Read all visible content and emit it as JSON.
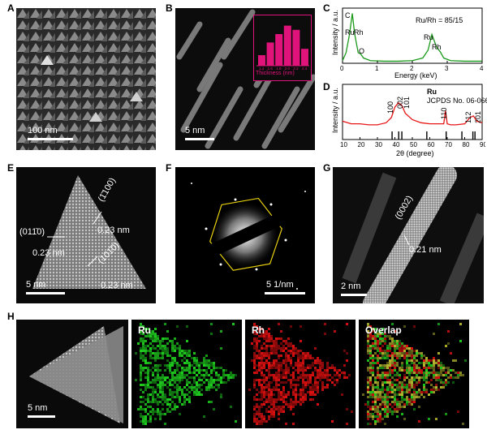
{
  "panels": {
    "A": {
      "letter": "A",
      "scale": "100 nm"
    },
    "B": {
      "letter": "B",
      "scale": "5 nm",
      "inset": {
        "xlabel": "Thickness (nm)",
        "chart_data": {
          "type": "bar",
          "categories": [
            "1.4",
            "1.6",
            "1.8",
            "2.0",
            "2.2",
            "2.4"
          ],
          "values": [
            0.25,
            0.55,
            0.75,
            0.95,
            0.85,
            0.4
          ],
          "xlabel": "Thickness (nm)",
          "ylabel": ""
        }
      }
    },
    "C": {
      "letter": "C",
      "ylabel": "Intensity / a.u.",
      "xlabel": "Energy (keV)",
      "ratio": "Ru/Rh = 85/15",
      "peaks": [
        "C",
        "Ru",
        "Rh",
        "O",
        "Ru",
        "Rh"
      ],
      "xticks": [
        "0",
        "1",
        "2",
        "3",
        "4"
      ],
      "chart_data": {
        "type": "line",
        "x": [
          0,
          0.1,
          0.2,
          0.28,
          0.35,
          0.45,
          0.52,
          0.6,
          0.8,
          1.2,
          1.6,
          2.0,
          2.3,
          2.45,
          2.56,
          2.7,
          2.8,
          2.9,
          3.1,
          3.5,
          4.0
        ],
        "y": [
          0.05,
          0.2,
          0.55,
          0.95,
          0.55,
          0.2,
          0.18,
          0.1,
          0.05,
          0.04,
          0.04,
          0.05,
          0.1,
          0.25,
          0.55,
          0.3,
          0.22,
          0.1,
          0.05,
          0.04,
          0.04
        ],
        "xlim": [
          0,
          4
        ],
        "xlabel": "Energy (keV)",
        "ylabel": "Intensity / a.u."
      }
    },
    "D": {
      "letter": "D",
      "ylabel": "Intensity / a.u.",
      "xlabel": "2θ (degree)",
      "ref_title": "Ru",
      "ref_card": "JCPDS No. 06-0663",
      "peak_labels": [
        "100",
        "002",
        "101",
        "110",
        "112",
        "201"
      ],
      "xticks": [
        "10",
        "20",
        "30",
        "40",
        "50",
        "60",
        "70",
        "80",
        "90"
      ],
      "chart_data": {
        "type": "line",
        "x": [
          10,
          15,
          20,
          25,
          30,
          35,
          38,
          40,
          42,
          44,
          46,
          50,
          55,
          60,
          65,
          68,
          69,
          70,
          72,
          75,
          80,
          83,
          85,
          87,
          90
        ],
        "y": [
          0.35,
          0.3,
          0.3,
          0.28,
          0.28,
          0.32,
          0.42,
          0.62,
          0.7,
          0.65,
          0.5,
          0.38,
          0.32,
          0.3,
          0.3,
          0.3,
          0.55,
          0.3,
          0.28,
          0.28,
          0.3,
          0.42,
          0.45,
          0.35,
          0.32
        ],
        "xlim": [
          10,
          90
        ],
        "xlabel": "2θ (degree)",
        "ylabel": "Intensity / a.u.",
        "ref_lines": [
          38.4,
          42.2,
          44.0,
          58.3,
          69.4,
          78.4,
          84.7,
          85.9
        ]
      }
    },
    "E": {
      "letter": "E",
      "scale": "5 nm",
      "labels": [
        "(1̄100)",
        "(011̄0)",
        "0.23 nm",
        "0.23 nm",
        "(101̄0)",
        "0.23 nm"
      ]
    },
    "F": {
      "letter": "F",
      "scale": "5 1/nm"
    },
    "G": {
      "letter": "G",
      "scale": "2 nm",
      "plane": "(0002)",
      "spacing": "0.21 nm"
    },
    "H": {
      "letter": "H",
      "scale": "5 nm",
      "maps": [
        "Ru",
        "Rh",
        "Overlap"
      ]
    }
  },
  "colors": {
    "ru_map": "#1fd11f",
    "rh_map": "#e01010",
    "overlap": "#b8b830",
    "xrd_line": "#e81515",
    "eds_line": "#1a9a1a",
    "inset_bar": "#e0137a"
  }
}
